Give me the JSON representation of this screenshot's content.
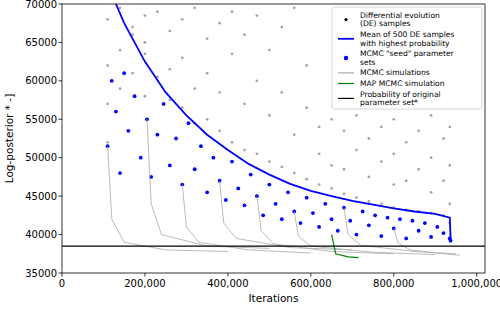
{
  "chart_data": {
    "type": "scatter",
    "x_label": "Iterations",
    "y_label": "Log-posterior * -]",
    "xlim": [
      0,
      1020000
    ],
    "ylim": [
      35000,
      70000
    ],
    "xticks": [
      0,
      {
        "value": 200000,
        "label": "200,000"
      },
      {
        "value": 400000,
        "label": "400,000"
      },
      {
        "value": 600000,
        "label": "600,000"
      },
      {
        "value": 800000,
        "label": "800,000"
      },
      {
        "value": 1000000,
        "label": "1,000,000"
      }
    ],
    "yticks": [
      35000,
      40000,
      45000,
      50000,
      55000,
      60000,
      65000,
      70000
    ],
    "grid": false,
    "legend": "upper right",
    "series": [
      {
        "name": "Differential evolution (DE) samples",
        "type": "scatter",
        "marker": "point",
        "color": "#000000",
        "x": [
          110000,
          110000,
          110000,
          110000,
          140000,
          140000,
          140000,
          170000,
          170000,
          170000,
          200000,
          200000,
          200000,
          200000,
          230000,
          230000,
          260000,
          260000,
          260000,
          290000,
          290000,
          290000,
          320000,
          320000,
          320000,
          350000,
          350000,
          350000,
          380000,
          380000,
          380000,
          410000,
          410000,
          410000,
          440000,
          440000,
          440000,
          470000,
          470000,
          470000,
          500000,
          500000,
          500000,
          530000,
          530000,
          530000,
          560000,
          560000,
          560000,
          590000,
          590000,
          590000,
          620000,
          620000,
          620000,
          650000,
          650000,
          650000,
          680000,
          680000,
          680000,
          710000,
          710000,
          710000,
          740000,
          740000,
          740000,
          770000,
          770000,
          770000,
          800000,
          800000,
          800000,
          800000,
          830000,
          830000,
          830000,
          860000,
          860000,
          860000,
          890000,
          890000,
          890000,
          890000,
          920000,
          920000,
          920000,
          935000,
          935000,
          935000,
          935000
        ],
        "values": [
          68000,
          62000,
          57000,
          52000,
          69500,
          64000,
          59000,
          67000,
          61000,
          66000,
          68500,
          63500,
          58000,
          65000,
          69000,
          60500,
          66500,
          61500,
          57500,
          68000,
          63000,
          56500,
          69500,
          59000,
          54500,
          65500,
          61000,
          55000,
          67500,
          58500,
          53500,
          69000,
          63500,
          52000,
          66000,
          57000,
          51000,
          68500,
          60000,
          50500,
          64000,
          55500,
          49500,
          67000,
          58500,
          48800,
          69500,
          53000,
          48000,
          62000,
          56500,
          47200,
          54000,
          50500,
          46500,
          55000,
          49000,
          46000,
          53500,
          48500,
          45300,
          55500,
          51000,
          44800,
          52500,
          47500,
          44300,
          54000,
          49500,
          44000,
          55000,
          50500,
          46500,
          43500,
          52000,
          47000,
          43200,
          53500,
          48500,
          43000,
          55500,
          50000,
          45500,
          42800,
          52500,
          47000,
          42500,
          54000,
          49000,
          44000,
          41500
        ]
      },
      {
        "name": "Mean of 500 DE samples with highest probability",
        "type": "line",
        "line_style": "solid",
        "color": "#0000ff",
        "x": [
          130000,
          150000,
          200000,
          250000,
          300000,
          350000,
          400000,
          450000,
          500000,
          550000,
          600000,
          650000,
          700000,
          750000,
          800000,
          850000,
          900000,
          935000,
          937000
        ],
        "values": [
          70000,
          67500,
          62500,
          58500,
          55500,
          53000,
          51000,
          49200,
          47800,
          46600,
          45700,
          45000,
          44400,
          43900,
          43400,
          43000,
          42700,
          42200,
          39500
        ]
      },
      {
        "name": "MCMC \"seed\" parameter sets",
        "type": "scatter",
        "marker": "circle",
        "color": "#0000ff",
        "x": [
          110000,
          120000,
          130000,
          140000,
          150000,
          160000,
          175000,
          190000,
          205000,
          215000,
          230000,
          245000,
          260000,
          275000,
          290000,
          305000,
          320000,
          335000,
          350000,
          365000,
          380000,
          395000,
          410000,
          425000,
          440000,
          455000,
          470000,
          485000,
          500000,
          515000,
          530000,
          545000,
          560000,
          575000,
          590000,
          605000,
          620000,
          635000,
          650000,
          665000,
          680000,
          695000,
          710000,
          725000,
          740000,
          755000,
          770000,
          785000,
          800000,
          815000,
          830000,
          845000,
          860000,
          875000,
          890000,
          905000,
          920000,
          935000,
          937000
        ],
        "values": [
          51500,
          60000,
          56000,
          48000,
          61000,
          53500,
          58000,
          50000,
          55000,
          47500,
          53000,
          57000,
          49000,
          52500,
          46500,
          54500,
          48500,
          51500,
          45500,
          50000,
          47000,
          44500,
          49500,
          46000,
          43800,
          47800,
          45000,
          42500,
          46500,
          44000,
          42000,
          45500,
          43000,
          41500,
          44800,
          42800,
          41000,
          44000,
          42000,
          40500,
          43500,
          41800,
          40000,
          43000,
          41200,
          42500,
          39800,
          42200,
          40800,
          42000,
          39500,
          41800,
          40500,
          41500,
          39700,
          41000,
          40200,
          39500,
          39200
        ]
      },
      {
        "name": "MCMC simulations",
        "type": "line",
        "line_style": "solid",
        "color": "#a9a9a9",
        "lines": [
          {
            "x": [
              110000,
              120000,
              150000,
              250000,
              400000
            ],
            "values": [
              51500,
              42000,
              39000,
              38000,
              37800
            ]
          },
          {
            "x": [
              205000,
              215000,
              240000,
              350000,
              500000
            ],
            "values": [
              55000,
              44000,
              40000,
              38500,
              38200
            ]
          },
          {
            "x": [
              290000,
              300000,
              330000,
              450000,
              600000
            ],
            "values": [
              46500,
              41000,
              39000,
              38000,
              37600
            ]
          },
          {
            "x": [
              380000,
              390000,
              420000,
              550000,
              700000
            ],
            "values": [
              47000,
              41500,
              39500,
              38300,
              38000
            ]
          },
          {
            "x": [
              470000,
              480000,
              510000,
              650000,
              800000
            ],
            "values": [
              45000,
              40500,
              38800,
              37800,
              37500
            ]
          },
          {
            "x": [
              560000,
              570000,
              600000,
              750000,
              900000
            ],
            "values": [
              43000,
              39800,
              38500,
              37700,
              37400
            ]
          },
          {
            "x": [
              680000,
              690000,
              720000,
              850000,
              950000
            ],
            "values": [
              43500,
              40000,
              38600,
              37800,
              37500
            ]
          },
          {
            "x": [
              800000,
              810000,
              840000,
              920000,
              960000
            ],
            "values": [
              40800,
              38900,
              38000,
              37500,
              37300
            ]
          }
        ]
      },
      {
        "name": "MAP MCMC simulation",
        "type": "line",
        "line_style": "solid",
        "color": "#008000",
        "x": [
          650000,
          660000,
          690000,
          715000
        ],
        "values": [
          40000,
          37500,
          37100,
          37000
        ]
      },
      {
        "name": "Probability of original parameter set*",
        "type": "line",
        "line_style": "solid",
        "color": "#000000",
        "x": [
          0,
          1020000
        ],
        "values": [
          38500,
          38500
        ]
      }
    ]
  }
}
